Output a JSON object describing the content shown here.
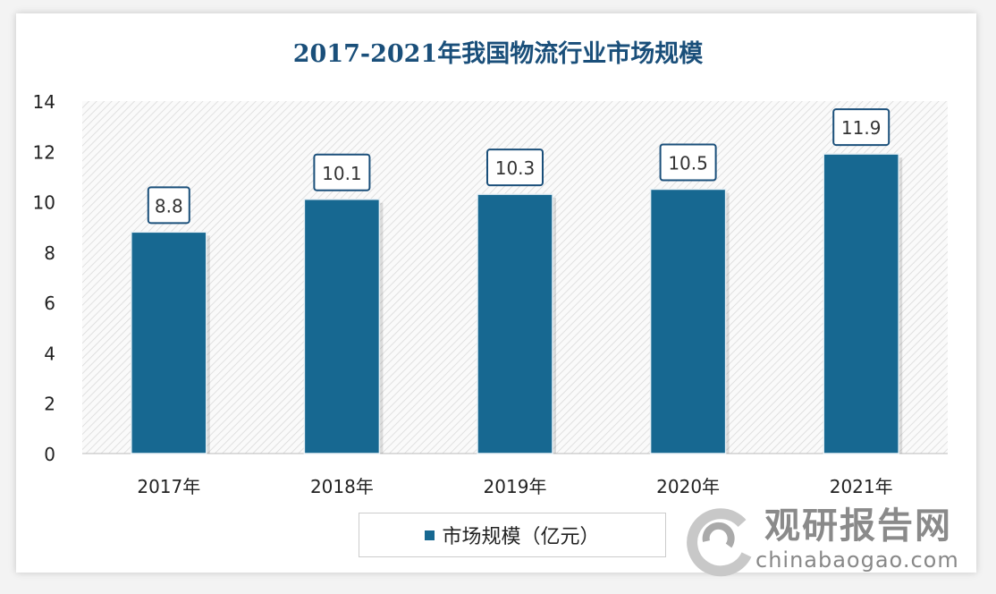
{
  "chart_data": {
    "type": "bar",
    "title": "2017-2021年我国物流行业市场规模",
    "categories": [
      "2017年",
      "2018年",
      "2019年",
      "2020年",
      "2021年"
    ],
    "series": [
      {
        "name": "市场规模（亿元）",
        "values": [
          8.8,
          10.1,
          10.3,
          10.5,
          11.9
        ],
        "color": "#176891"
      }
    ],
    "data_labels": [
      "8.8",
      "10.1",
      "10.3",
      "10.5",
      "11.9"
    ],
    "yticks": [
      "0",
      "2",
      "4",
      "6",
      "8",
      "10",
      "12",
      "14"
    ],
    "ylim": [
      0,
      14
    ],
    "xlabel": "",
    "ylabel": "",
    "legend_position": "bottom",
    "grid": false
  },
  "watermark": {
    "cn": "观研报告网",
    "en": "chinabaogao.com"
  }
}
